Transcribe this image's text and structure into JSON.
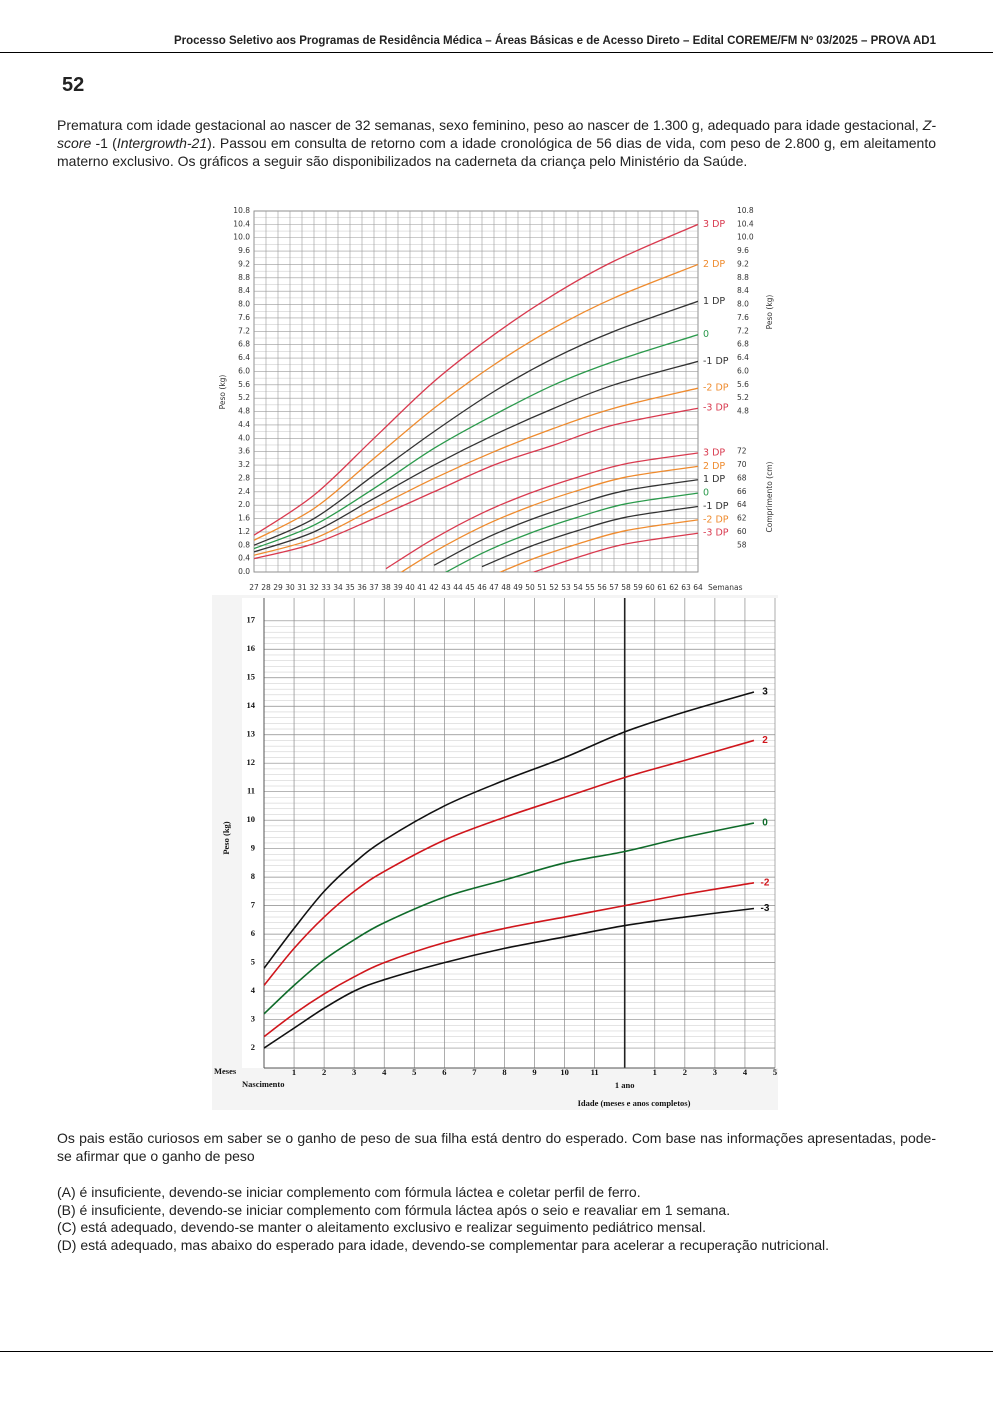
{
  "header": "Processo Seletivo aos Programas de Residência Médica – Áreas Básicas e de Acesso Direto – Edital COREME/FM Nº 03/2025 – PROVA AD1",
  "question_number": "52",
  "stem": [
    "Prematura com idade gestacional ao nascer de 32 semanas, sexo feminino, peso ao nascer de 1.300 g, adequado para idade gestacional, ",
    "Z-score",
    " -1 (",
    "Intergrowth-21",
    "). Passou em consulta de retorno com a idade cronológica de 56 dias de vida, com peso de 2.800 g, em aleitamento materno exclusivo. Os gráficos a seguir são disponibilizados na caderneta da criança pelo Ministério da Saúde."
  ],
  "chart_data": [
    {
      "type": "line",
      "xlabel": "Semanas",
      "ylabel": "Peso (kg)",
      "ylabel_right": "Peso (kg)",
      "y2label": "Comprimento (cm)",
      "x": [
        27,
        32,
        37,
        42,
        47,
        52,
        57,
        64
      ],
      "xlim": [
        27,
        64
      ],
      "xticks": [
        27,
        28,
        29,
        30,
        31,
        32,
        33,
        34,
        35,
        36,
        37,
        38,
        39,
        40,
        41,
        42,
        43,
        44,
        45,
        46,
        47,
        48,
        49,
        50,
        51,
        52,
        53,
        54,
        55,
        56,
        57,
        58,
        59,
        60,
        61,
        62,
        63,
        64
      ],
      "ylim": [
        0,
        10.8
      ],
      "yticks": [
        {
          "value": 0,
          "label": "0.0"
        },
        0.4,
        0.8,
        1.2,
        1.6,
        {
          "value": 2,
          "label": "2.0"
        },
        2.4,
        2.8,
        3.2,
        3.6,
        {
          "value": 4,
          "label": "4.0"
        },
        4.4,
        4.8,
        5.2,
        5.6,
        {
          "value": 6,
          "label": "6.0"
        },
        6.4,
        6.8,
        7.2,
        7.6,
        {
          "value": 8,
          "label": "8.0"
        },
        8.4,
        8.8,
        9.2,
        9.6,
        {
          "value": 10,
          "label": "10.0"
        },
        10.4,
        10.8
      ],
      "yticks_right": [
        4.8,
        5.2,
        5.6,
        {
          "value": 6,
          "label": "6.0"
        },
        6.4,
        6.8,
        7.2,
        7.6,
        {
          "value": 8,
          "label": "8.0"
        },
        8.4,
        8.8,
        9.2,
        9.6,
        {
          "value": 10,
          "label": "10.0"
        },
        10.4,
        10.8
      ],
      "y2lim": [
        54,
        108
      ],
      "y2ticks": [
        58,
        60,
        62,
        64,
        66,
        68,
        70,
        72
      ],
      "grid": true,
      "series": [
        {
          "name": "3 DP",
          "color": "#d93a4f",
          "values": [
            1.1,
            2.3,
            4.0,
            5.7,
            7.1,
            8.3,
            9.3,
            10.4
          ]
        },
        {
          "name": "2 DP",
          "color": "#ef8b2e",
          "values": [
            0.95,
            1.9,
            3.4,
            4.9,
            6.2,
            7.3,
            8.2,
            9.2
          ]
        },
        {
          "name": "1 DP",
          "color": "#333333",
          "values": [
            0.8,
            1.6,
            2.9,
            4.2,
            5.4,
            6.4,
            7.2,
            8.1
          ]
        },
        {
          "name": "0",
          "color": "#2b9a4c",
          "values": [
            0.7,
            1.4,
            2.5,
            3.7,
            4.7,
            5.6,
            6.3,
            7.1
          ]
        },
        {
          "name": "-1 DP",
          "color": "#333333",
          "values": [
            0.6,
            1.2,
            2.2,
            3.2,
            4.1,
            4.9,
            5.6,
            6.3
          ]
        },
        {
          "name": "-2 DP",
          "color": "#ef8b2e",
          "values": [
            0.5,
            1.0,
            1.9,
            2.8,
            3.6,
            4.3,
            4.9,
            5.5
          ]
        },
        {
          "name": "-3 DP",
          "color": "#d93a4f",
          "values": [
            0.4,
            0.85,
            1.6,
            2.4,
            3.2,
            3.8,
            4.4,
            4.9
          ]
        },
        {
          "name": "3 DP",
          "color": "#d93a4f",
          "axis": "y2",
          "x": [
            38,
            42,
            46,
            50,
            54,
            58,
            64
          ],
          "values": [
            54.5,
            59,
            62.8,
            65.8,
            68.2,
            70.2,
            71.8
          ]
        },
        {
          "name": "2 DP",
          "color": "#ef8b2e",
          "axis": "y2",
          "x": [
            38,
            42,
            46,
            50,
            54,
            58,
            64
          ],
          "values": [
            52.5,
            57,
            60.8,
            63.8,
            66.2,
            68.2,
            69.8
          ]
        },
        {
          "name": "1 DP",
          "color": "#333333",
          "axis": "y2",
          "x": [
            38,
            42,
            46,
            50,
            54,
            58,
            64
          ],
          "values": [
            null,
            55,
            58.8,
            61.8,
            64.2,
            66.2,
            67.8
          ]
        },
        {
          "name": "0",
          "color": "#2b9a4c",
          "axis": "y2",
          "x": [
            38,
            42,
            46,
            50,
            54,
            58,
            64
          ],
          "values": [
            null,
            53,
            56.8,
            59.8,
            62.2,
            64.2,
            65.8
          ]
        },
        {
          "name": "-1 DP",
          "color": "#333333",
          "axis": "y2",
          "x": [
            38,
            42,
            46,
            50,
            54,
            58,
            64
          ],
          "values": [
            null,
            null,
            54.8,
            57.8,
            60.2,
            62.2,
            63.8
          ]
        },
        {
          "name": "-2 DP",
          "color": "#ef8b2e",
          "axis": "y2",
          "x": [
            38,
            42,
            46,
            50,
            54,
            58,
            64
          ],
          "values": [
            null,
            null,
            52.8,
            55.8,
            58.2,
            60.2,
            61.8
          ]
        },
        {
          "name": "-3 DP",
          "color": "#d93a4f",
          "axis": "y2",
          "x": [
            38,
            42,
            46,
            50,
            54,
            58,
            64
          ],
          "values": [
            null,
            null,
            null,
            53.8,
            56.2,
            58.2,
            59.8
          ]
        }
      ]
    },
    {
      "type": "line",
      "xlabel": "Idade (meses e anos completos)",
      "ylabel": "Peso (kg)",
      "x_unit_label": "Meses",
      "x_origin_label": "Nascimento",
      "x": [
        0,
        1,
        2,
        3,
        4,
        6,
        8,
        10,
        12,
        14,
        16.3
      ],
      "xlim": [
        0,
        17
      ],
      "xticks": [
        1,
        2,
        3,
        4,
        5,
        6,
        7,
        8,
        9,
        10,
        11,
        {
          "value": 12,
          "label": "1 ano"
        },
        {
          "value": 13,
          "label": "1"
        },
        {
          "value": 14,
          "label": "2"
        },
        {
          "value": 15,
          "label": "3"
        },
        {
          "value": 16,
          "label": "4"
        },
        {
          "value": 17,
          "label": "5"
        }
      ],
      "ylim": [
        1.3,
        17.8
      ],
      "yticks": [
        2,
        3,
        4,
        5,
        6,
        7,
        8,
        9,
        10,
        11,
        12,
        13,
        14,
        15,
        16,
        17
      ],
      "grid": true,
      "series": [
        {
          "name": "3",
          "color": "#111111",
          "values": [
            4.8,
            6.2,
            7.5,
            8.5,
            9.3,
            10.5,
            11.4,
            12.2,
            13.1,
            13.8,
            14.5
          ]
        },
        {
          "name": "2",
          "color": "#d0161c",
          "values": [
            4.2,
            5.5,
            6.6,
            7.5,
            8.2,
            9.3,
            10.1,
            10.8,
            11.5,
            12.1,
            12.8
          ]
        },
        {
          "name": "0",
          "color": "#0f6b2a",
          "values": [
            3.2,
            4.2,
            5.1,
            5.8,
            6.4,
            7.3,
            7.9,
            8.5,
            8.9,
            9.4,
            9.9
          ]
        },
        {
          "name": "-2",
          "color": "#d0161c",
          "values": [
            2.4,
            3.2,
            3.9,
            4.5,
            5.0,
            5.7,
            6.2,
            6.6,
            7.0,
            7.4,
            7.8
          ]
        },
        {
          "name": "-3",
          "color": "#111111",
          "values": [
            2.0,
            2.7,
            3.4,
            4.0,
            4.4,
            5.0,
            5.5,
            5.9,
            6.3,
            6.6,
            6.9
          ]
        }
      ]
    }
  ],
  "question": "Os pais estão curiosos em saber se o ganho de peso de sua filha está dentro do esperado. Com base nas informações apresentadas, pode-se afirmar que o ganho de peso",
  "options": [
    "(A) é insuficiente, devendo-se iniciar complemento com fórmula láctea e coletar perfil de ferro.",
    "(B) é insuficiente, devendo-se iniciar complemento com fórmula láctea após o seio e reavaliar em 1 semana.",
    "(C) está adequado, devendo-se manter o aleitamento exclusivo e realizar seguimento pediátrico mensal.",
    "(D) está adequado, mas abaixo do esperado para idade, devendo-se complementar para acelerar a recuperação nutricional."
  ]
}
